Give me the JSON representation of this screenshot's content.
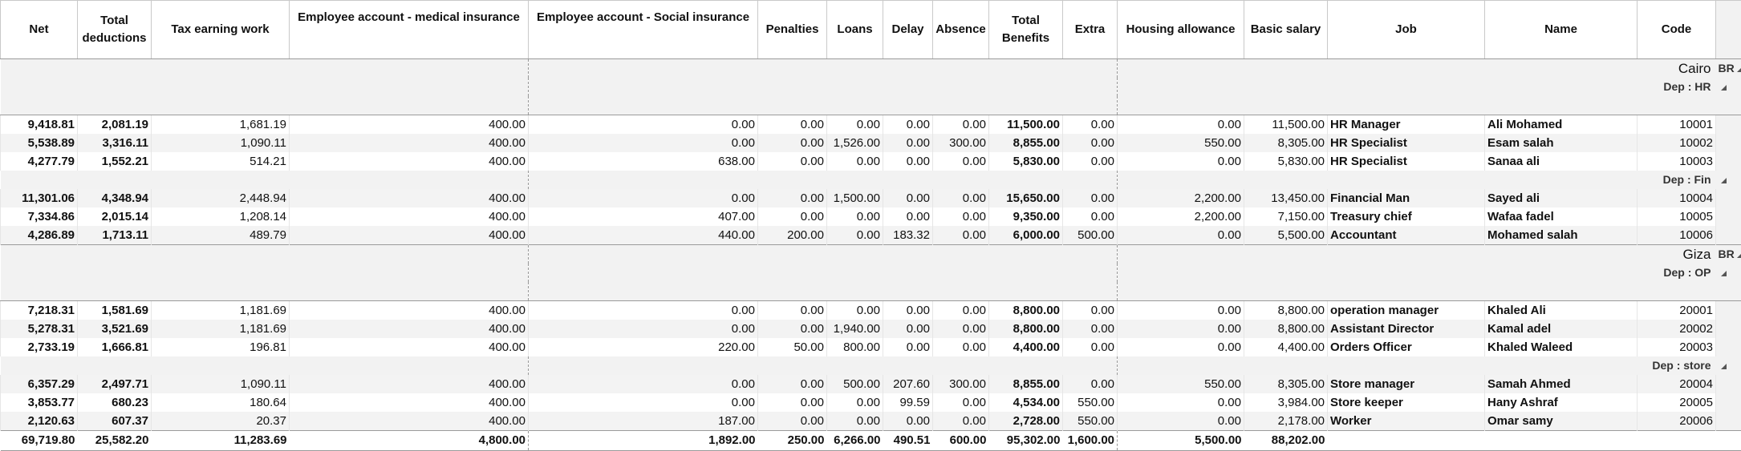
{
  "columns": [
    "Net",
    "Total deductions",
    "Tax earning work",
    "Employee account - medical insurance",
    "Employee account - Social insurance",
    "Penalties",
    "Loans",
    "Delay",
    "Absence",
    "Total Benefits",
    "Extra",
    "Housing allowance",
    "Basic salary",
    "Job",
    "Name",
    "Code"
  ],
  "header": {
    "net": "Net",
    "total_deductions_1": "Total",
    "total_deductions_2": "deductions",
    "tax": "Tax earning work",
    "medical": "Employee account - medical insurance",
    "social": "Employee account - Social insurance",
    "penalties": "Penalties",
    "loans": "Loans",
    "delay": "Delay",
    "absence": "Absence",
    "total_benefits_1": "Total",
    "total_benefits_2": "Benefits",
    "extra": "Extra",
    "housing": "Housing allowance",
    "basic": "Basic salary",
    "job": "Job",
    "name": "Name",
    "code": "Code"
  },
  "branches": [
    {
      "name": "Cairo",
      "tag": "BR",
      "departments": [
        {
          "name": "Dep : HR",
          "rows": [
            {
              "net": "9,418.81",
              "total_deductions": "2,081.19",
              "tax": "1,681.19",
              "medical": "400.00",
              "social": "0.00",
              "penalties": "0.00",
              "loans": "0.00",
              "delay": "0.00",
              "absence": "0.00",
              "total_benefits": "11,500.00",
              "extra": "0.00",
              "housing": "0.00",
              "basic": "11,500.00",
              "job": "HR Manager",
              "name": "Ali Mohamed",
              "code": "10001"
            },
            {
              "net": "5,538.89",
              "total_deductions": "3,316.11",
              "tax": "1,090.11",
              "medical": "400.00",
              "social": "0.00",
              "penalties": "0.00",
              "loans": "1,526.00",
              "delay": "0.00",
              "absence": "300.00",
              "total_benefits": "8,855.00",
              "extra": "0.00",
              "housing": "550.00",
              "basic": "8,305.00",
              "job": "HR Specialist",
              "name": "Esam salah",
              "code": "10002"
            },
            {
              "net": "4,277.79",
              "total_deductions": "1,552.21",
              "tax": "514.21",
              "medical": "400.00",
              "social": "638.00",
              "penalties": "0.00",
              "loans": "0.00",
              "delay": "0.00",
              "absence": "0.00",
              "total_benefits": "5,830.00",
              "extra": "0.00",
              "housing": "0.00",
              "basic": "5,830.00",
              "job": "HR Specialist",
              "name": "Sanaa ali",
              "code": "10003"
            }
          ]
        },
        {
          "name": "Dep : Fin",
          "rows": [
            {
              "net": "11,301.06",
              "total_deductions": "4,348.94",
              "tax": "2,448.94",
              "medical": "400.00",
              "social": "0.00",
              "penalties": "0.00",
              "loans": "1,500.00",
              "delay": "0.00",
              "absence": "0.00",
              "total_benefits": "15,650.00",
              "extra": "0.00",
              "housing": "2,200.00",
              "basic": "13,450.00",
              "job": "Financial Man",
              "name": "Sayed ali",
              "code": "10004"
            },
            {
              "net": "7,334.86",
              "total_deductions": "2,015.14",
              "tax": "1,208.14",
              "medical": "400.00",
              "social": "407.00",
              "penalties": "0.00",
              "loans": "0.00",
              "delay": "0.00",
              "absence": "0.00",
              "total_benefits": "9,350.00",
              "extra": "0.00",
              "housing": "2,200.00",
              "basic": "7,150.00",
              "job": "Treasury chief",
              "name": "Wafaa fadel",
              "code": "10005"
            },
            {
              "net": "4,286.89",
              "total_deductions": "1,713.11",
              "tax": "489.79",
              "medical": "400.00",
              "social": "440.00",
              "penalties": "200.00",
              "loans": "0.00",
              "delay": "183.32",
              "absence": "0.00",
              "total_benefits": "6,000.00",
              "extra": "500.00",
              "housing": "0.00",
              "basic": "5,500.00",
              "job": "Accountant",
              "name": "Mohamed salah",
              "code": "10006"
            }
          ]
        }
      ]
    },
    {
      "name": "Giza",
      "tag": "BR",
      "departments": [
        {
          "name": "Dep : OP",
          "rows": [
            {
              "net": "7,218.31",
              "total_deductions": "1,581.69",
              "tax": "1,181.69",
              "medical": "400.00",
              "social": "0.00",
              "penalties": "0.00",
              "loans": "0.00",
              "delay": "0.00",
              "absence": "0.00",
              "total_benefits": "8,800.00",
              "extra": "0.00",
              "housing": "0.00",
              "basic": "8,800.00",
              "job": "operation manager",
              "name": "Khaled Ali",
              "code": "20001"
            },
            {
              "net": "5,278.31",
              "total_deductions": "3,521.69",
              "tax": "1,181.69",
              "medical": "400.00",
              "social": "0.00",
              "penalties": "0.00",
              "loans": "1,940.00",
              "delay": "0.00",
              "absence": "0.00",
              "total_benefits": "8,800.00",
              "extra": "0.00",
              "housing": "0.00",
              "basic": "8,800.00",
              "job": "Assistant Director",
              "name": "Kamal adel",
              "code": "20002"
            },
            {
              "net": "2,733.19",
              "total_deductions": "1,666.81",
              "tax": "196.81",
              "medical": "400.00",
              "social": "220.00",
              "penalties": "50.00",
              "loans": "800.00",
              "delay": "0.00",
              "absence": "0.00",
              "total_benefits": "4,400.00",
              "extra": "0.00",
              "housing": "0.00",
              "basic": "4,400.00",
              "job": "Orders Officer",
              "name": "Khaled Waleed",
              "code": "20003"
            }
          ]
        },
        {
          "name": "Dep : store",
          "rows": [
            {
              "net": "6,357.29",
              "total_deductions": "2,497.71",
              "tax": "1,090.11",
              "medical": "400.00",
              "social": "0.00",
              "penalties": "0.00",
              "loans": "500.00",
              "delay": "207.60",
              "absence": "300.00",
              "total_benefits": "8,855.00",
              "extra": "0.00",
              "housing": "550.00",
              "basic": "8,305.00",
              "job": "Store manager",
              "name": "Samah Ahmed",
              "code": "20004"
            },
            {
              "net": "3,853.77",
              "total_deductions": "680.23",
              "tax": "180.64",
              "medical": "400.00",
              "social": "0.00",
              "penalties": "0.00",
              "loans": "0.00",
              "delay": "99.59",
              "absence": "0.00",
              "total_benefits": "4,534.00",
              "extra": "550.00",
              "housing": "0.00",
              "basic": "3,984.00",
              "job": "Store keeper",
              "name": "Hany Ashraf",
              "code": "20005"
            },
            {
              "net": "2,120.63",
              "total_deductions": "607.37",
              "tax": "20.37",
              "medical": "400.00",
              "social": "187.00",
              "penalties": "0.00",
              "loans": "0.00",
              "delay": "0.00",
              "absence": "0.00",
              "total_benefits": "2,728.00",
              "extra": "550.00",
              "housing": "0.00",
              "basic": "2,178.00",
              "job": "Worker",
              "name": "Omar samy",
              "code": "20006"
            }
          ]
        }
      ]
    }
  ],
  "totals": {
    "net": "69,719.80",
    "total_deductions": "25,582.20",
    "tax": "11,283.69",
    "medical": "4,800.00",
    "social": "1,892.00",
    "penalties": "250.00",
    "loans": "6,266.00",
    "delay": "490.51",
    "absence": "600.00",
    "total_benefits": "95,302.00",
    "extra": "1,600.00",
    "housing": "5,500.00",
    "basic": "88,202.00"
  },
  "colors": {
    "row_alt": "#f3f3f3",
    "group_bg": "#f2f2f2",
    "border": "#c9c9c9",
    "text": "#111111"
  },
  "icons": {
    "expand_marker": "triangle-corner-icon"
  }
}
